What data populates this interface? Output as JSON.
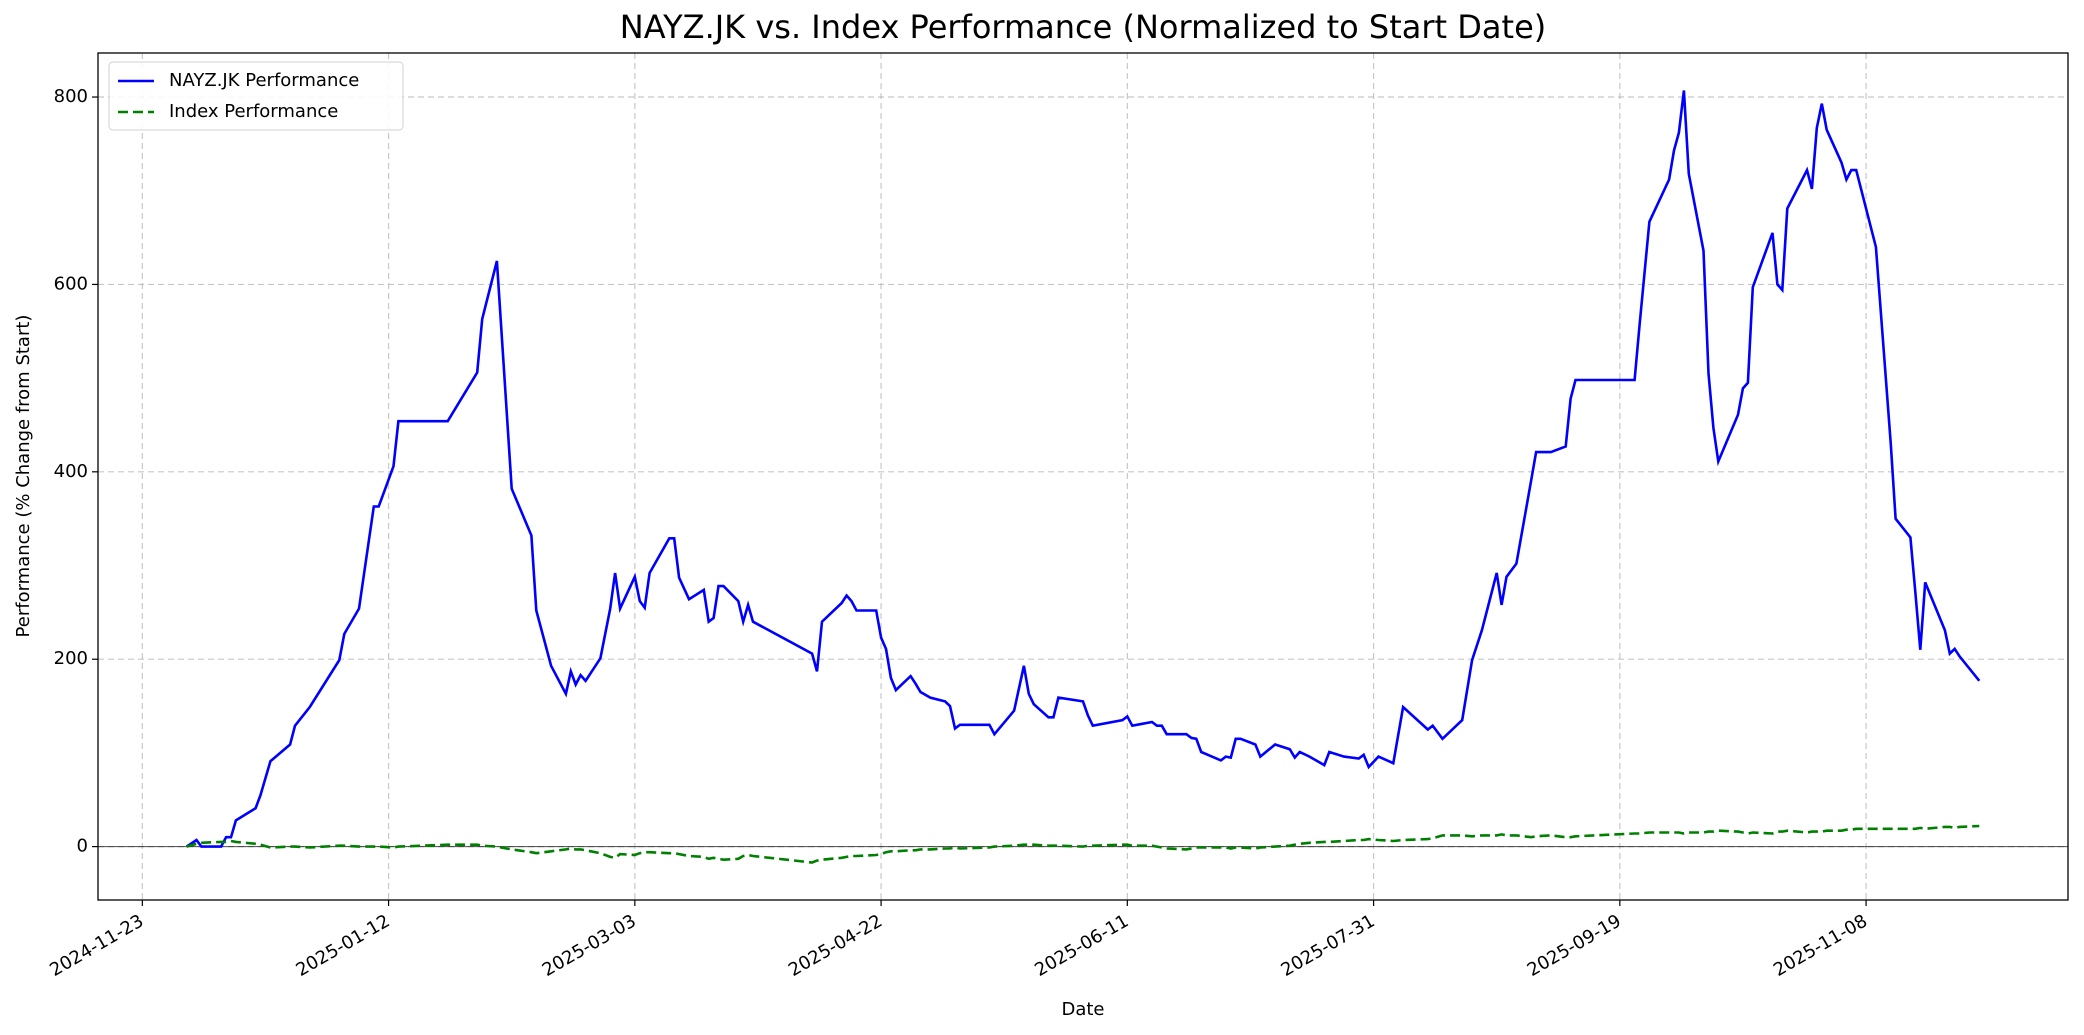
{
  "chart_data": {
    "type": "line",
    "title": "NAYZ.JK vs. Index Performance (Normalized to Start Date)",
    "xlabel": "Date",
    "ylabel": "Performance (% Change from Start)",
    "x": [
      "2024-12-02",
      "2024-12-04",
      "2024-12-05",
      "2024-12-09",
      "2024-12-10",
      "2024-12-11",
      "2024-12-12",
      "2024-12-16",
      "2024-12-17",
      "2024-12-19",
      "2024-12-23",
      "2024-12-24",
      "2024-12-27",
      "2025-01-02",
      "2025-01-03",
      "2025-01-06",
      "2025-01-09",
      "2025-01-10",
      "2025-01-13",
      "2025-01-14",
      "2025-01-24",
      "2025-01-30",
      "2025-01-31",
      "2025-02-03",
      "2025-02-06",
      "2025-02-10",
      "2025-02-11",
      "2025-02-14",
      "2025-02-17",
      "2025-02-18",
      "2025-02-19",
      "2025-02-20",
      "2025-02-21",
      "2025-02-24",
      "2025-02-26",
      "2025-02-27",
      "2025-02-28",
      "2025-03-03",
      "2025-03-04",
      "2025-03-05",
      "2025-03-06",
      "2025-03-10",
      "2025-03-11",
      "2025-03-12",
      "2025-03-14",
      "2025-03-17",
      "2025-03-18",
      "2025-03-19",
      "2025-03-20",
      "2025-03-21",
      "2025-03-24",
      "2025-03-25",
      "2025-03-26",
      "2025-03-27",
      "2025-04-08",
      "2025-04-09",
      "2025-04-10",
      "2025-04-14",
      "2025-04-15",
      "2025-04-16",
      "2025-04-17",
      "2025-04-21",
      "2025-04-22",
      "2025-04-23",
      "2025-04-24",
      "2025-04-25",
      "2025-04-28",
      "2025-04-29",
      "2025-04-30",
      "2025-05-02",
      "2025-05-05",
      "2025-05-06",
      "2025-05-07",
      "2025-05-08",
      "2025-05-14",
      "2025-05-15",
      "2025-05-19",
      "2025-05-21",
      "2025-05-22",
      "2025-05-23",
      "2025-05-26",
      "2025-05-27",
      "2025-05-28",
      "2025-06-02",
      "2025-06-03",
      "2025-06-04",
      "2025-06-10",
      "2025-06-11",
      "2025-06-12",
      "2025-06-16",
      "2025-06-17",
      "2025-06-18",
      "2025-06-19",
      "2025-06-23",
      "2025-06-24",
      "2025-06-25",
      "2025-06-26",
      "2025-06-30",
      "2025-07-01",
      "2025-07-02",
      "2025-07-03",
      "2025-07-04",
      "2025-07-07",
      "2025-07-08",
      "2025-07-11",
      "2025-07-14",
      "2025-07-15",
      "2025-07-16",
      "2025-07-18",
      "2025-07-21",
      "2025-07-22",
      "2025-07-25",
      "2025-07-28",
      "2025-07-29",
      "2025-07-30",
      "2025-08-01",
      "2025-08-04",
      "2025-08-06",
      "2025-08-11",
      "2025-08-12",
      "2025-08-14",
      "2025-08-18",
      "2025-08-20",
      "2025-08-22",
      "2025-08-25",
      "2025-08-26",
      "2025-08-27",
      "2025-08-29",
      "2025-09-01",
      "2025-09-02",
      "2025-09-05",
      "2025-09-08",
      "2025-09-09",
      "2025-09-10",
      "2025-09-22",
      "2025-09-23",
      "2025-09-25",
      "2025-09-29",
      "2025-09-30",
      "2025-10-01",
      "2025-10-02",
      "2025-10-03",
      "2025-10-06",
      "2025-10-07",
      "2025-10-08",
      "2025-10-09",
      "2025-10-13",
      "2025-10-14",
      "2025-10-15",
      "2025-10-16",
      "2025-10-20",
      "2025-10-21",
      "2025-10-22",
      "2025-10-23",
      "2025-10-27",
      "2025-10-28",
      "2025-10-29",
      "2025-10-30",
      "2025-10-31",
      "2025-11-03",
      "2025-11-04",
      "2025-11-05",
      "2025-11-06",
      "2025-11-10",
      "2025-11-13",
      "2025-11-14",
      "2025-11-17",
      "2025-11-18",
      "2025-11-19",
      "2025-11-20",
      "2025-11-24",
      "2025-11-25",
      "2025-11-26",
      "2025-11-27",
      "2025-12-01"
    ],
    "series": [
      {
        "name": "NAYZ.JK Performance",
        "color": "#0000ff",
        "linestyle": "solid",
        "values": [
          0,
          7,
          0,
          0,
          10,
          10,
          28,
          41,
          55,
          91,
          109,
          129,
          149,
          199,
          227,
          254,
          363,
          363,
          406,
          454,
          454,
          506,
          563,
          625,
          382,
          332,
          252,
          193,
          163,
          187,
          173,
          183,
          177,
          201,
          254,
          292,
          254,
          288,
          262,
          255,
          292,
          329,
          329,
          287,
          264,
          274,
          240,
          244,
          278,
          278,
          262,
          240,
          258,
          240,
          206,
          187,
          240,
          260,
          268,
          262,
          252,
          252,
          223,
          211,
          180,
          167,
          182,
          174,
          165,
          159,
          155,
          150,
          126,
          130,
          130,
          120,
          145,
          193,
          163,
          152,
          138,
          138,
          159,
          155,
          140,
          129,
          135,
          139,
          129,
          133,
          129,
          129,
          120,
          120,
          116,
          115,
          101,
          92,
          96,
          95,
          115,
          115,
          109,
          96,
          109,
          104,
          95,
          101,
          96,
          87,
          101,
          96,
          94,
          98,
          85,
          96,
          89,
          149,
          125,
          129,
          115,
          135,
          199,
          231,
          292,
          258,
          288,
          302,
          391,
          421,
          421,
          427,
          478,
          498,
          498,
          556,
          667,
          712,
          743,
          762,
          807,
          718,
          636,
          505,
          447,
          411,
          461,
          489,
          495,
          597,
          655,
          600,
          594,
          681,
          722,
          702,
          767,
          793,
          765,
          730,
          712,
          722,
          722,
          640,
          431,
          350,
          330,
          272,
          210,
          282,
          231,
          206,
          211,
          203,
          177
        ]
      },
      {
        "name": "Index Performance",
        "color": "#008000",
        "linestyle": "dashed",
        "values": [
          0,
          3,
          4,
          5,
          5,
          6,
          5,
          3,
          2,
          -1,
          0,
          0,
          -1,
          1,
          1,
          0,
          0,
          0,
          -1,
          0,
          2,
          2,
          1,
          0,
          -3,
          -6,
          -7,
          -5,
          -3,
          -2,
          -3,
          -3,
          -4,
          -7,
          -11,
          -12,
          -8,
          -9,
          -7,
          -6,
          -6,
          -7,
          -7,
          -8,
          -10,
          -11,
          -13,
          -12,
          -13,
          -14,
          -13,
          -10,
          -9,
          -10,
          -17,
          -15,
          -14,
          -12,
          -11,
          -10,
          -10,
          -9,
          -8,
          -6,
          -5,
          -5,
          -4,
          -4,
          -3,
          -3,
          -2,
          -2,
          -1,
          -2,
          -1,
          0,
          1,
          2,
          2,
          2,
          1,
          1,
          1,
          0,
          1,
          1,
          2,
          2,
          1,
          1,
          0,
          -1,
          -2,
          -3,
          -2,
          -1,
          -1,
          -1,
          -1,
          -2,
          -1,
          -1,
          -2,
          -1,
          0,
          1,
          2,
          3,
          4,
          5,
          5,
          6,
          7,
          7,
          8,
          7,
          6,
          7,
          8,
          9,
          12,
          12,
          11,
          12,
          12,
          13,
          12,
          12,
          10,
          11,
          12,
          10,
          10,
          11,
          14,
          14,
          15,
          15,
          15,
          15,
          14,
          15,
          15,
          16,
          16,
          17,
          16,
          15,
          14,
          15,
          14,
          16,
          16,
          17,
          15,
          16,
          16,
          16,
          17,
          17,
          18,
          18,
          19,
          19,
          19,
          19,
          19,
          19,
          20,
          19,
          21,
          21,
          20,
          21,
          22
        ]
      }
    ],
    "xlim": [
      "2024-11-14",
      "2025-12-19"
    ],
    "xticks": [
      "2024-11-23",
      "2025-01-12",
      "2025-03-03",
      "2025-04-22",
      "2025-06-11",
      "2025-07-31",
      "2025-09-19",
      "2025-11-08"
    ],
    "ylim": [
      -57,
      847
    ],
    "yticks": [
      0,
      200,
      400,
      600,
      800
    ],
    "grid": true,
    "legend": "upper left"
  }
}
